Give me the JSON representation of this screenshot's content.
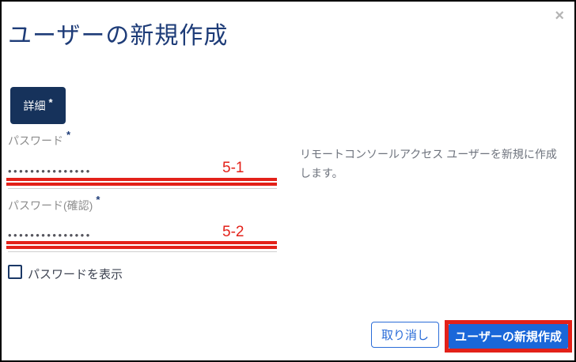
{
  "dialog": {
    "title": "ユーザーの新規作成",
    "close_icon": "×",
    "description": "リモートコンソールアクセス ユーザーを新規に作成します。"
  },
  "tabs": {
    "details": {
      "label": "詳細",
      "required_marker": "*"
    }
  },
  "form": {
    "password": {
      "label": "パスワード",
      "required_marker": "*",
      "value_masked": "•••••••••••••••",
      "annotation": "5-1"
    },
    "password_confirm": {
      "label": "パスワード(確認)",
      "required_marker": "*",
      "value_masked": "•••••••••••••••",
      "annotation": "5-2"
    },
    "show_password": {
      "label": "パスワードを表示",
      "checked": false
    }
  },
  "footer": {
    "cancel_label": "取り消し",
    "submit_label": "ユーザーの新規作成"
  },
  "colors": {
    "title_navy": "#1e3c78",
    "tab_navy": "#16325b",
    "accent_blue": "#1a67d9",
    "cancel_blue": "#2a6cd8",
    "annotation_red": "#e32119",
    "label_gray": "#8d8d8d",
    "description_gray": "#6e737d",
    "border_black": "#000000"
  }
}
